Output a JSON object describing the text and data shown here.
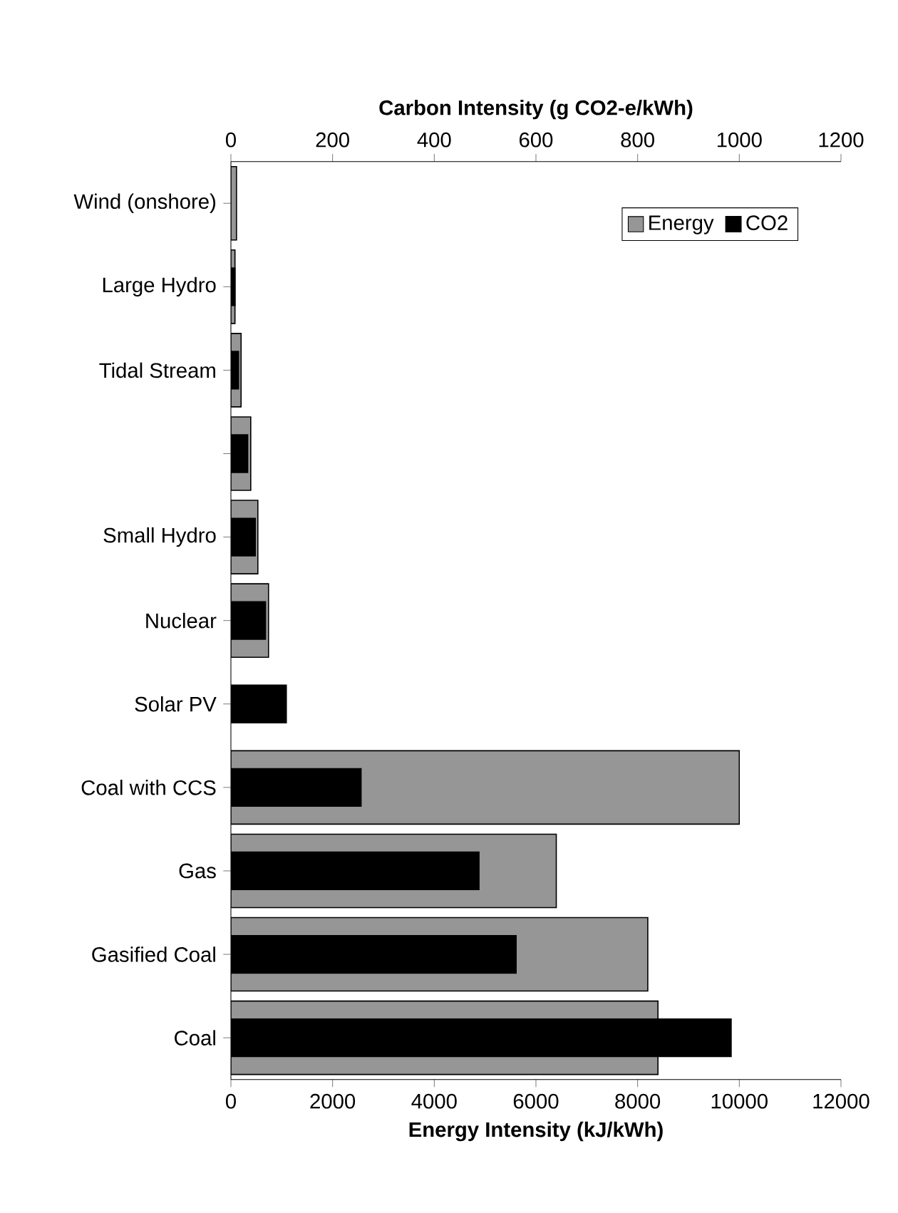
{
  "chart_data": {
    "type": "bar",
    "orientation": "horizontal",
    "categories": [
      "Wind (onshore)",
      "Large Hydro",
      "Tidal Stream",
      null,
      "Small Hydro",
      "Nuclear",
      "Solar PV",
      "Coal with CCS",
      "Gas",
      "Gasified Coal",
      "Coal"
    ],
    "series": [
      {
        "name": "Energy",
        "color": "#969696",
        "values": [
          110,
          80,
          200,
          390,
          530,
          740,
          null,
          10000,
          6400,
          8200,
          8400
        ]
      },
      {
        "name": "CO2",
        "color": "#000000",
        "axis": "x2",
        "values": [
          null,
          8,
          15,
          33,
          48,
          68,
          109,
          256,
          488,
          561,
          984
        ]
      }
    ],
    "xlabel": "Energy Intensity (kJ/kWh)",
    "x2label": "Carbon Intensity (g CO2-e/kWh)",
    "xlim": [
      0,
      12000
    ],
    "xticks": [
      0,
      2000,
      4000,
      6000,
      8000,
      10000,
      12000
    ],
    "x2lim": [
      0,
      1200
    ],
    "x2ticks": [
      0,
      200,
      400,
      600,
      800,
      1000,
      1200
    ],
    "legend": "top right",
    "grid": false
  }
}
